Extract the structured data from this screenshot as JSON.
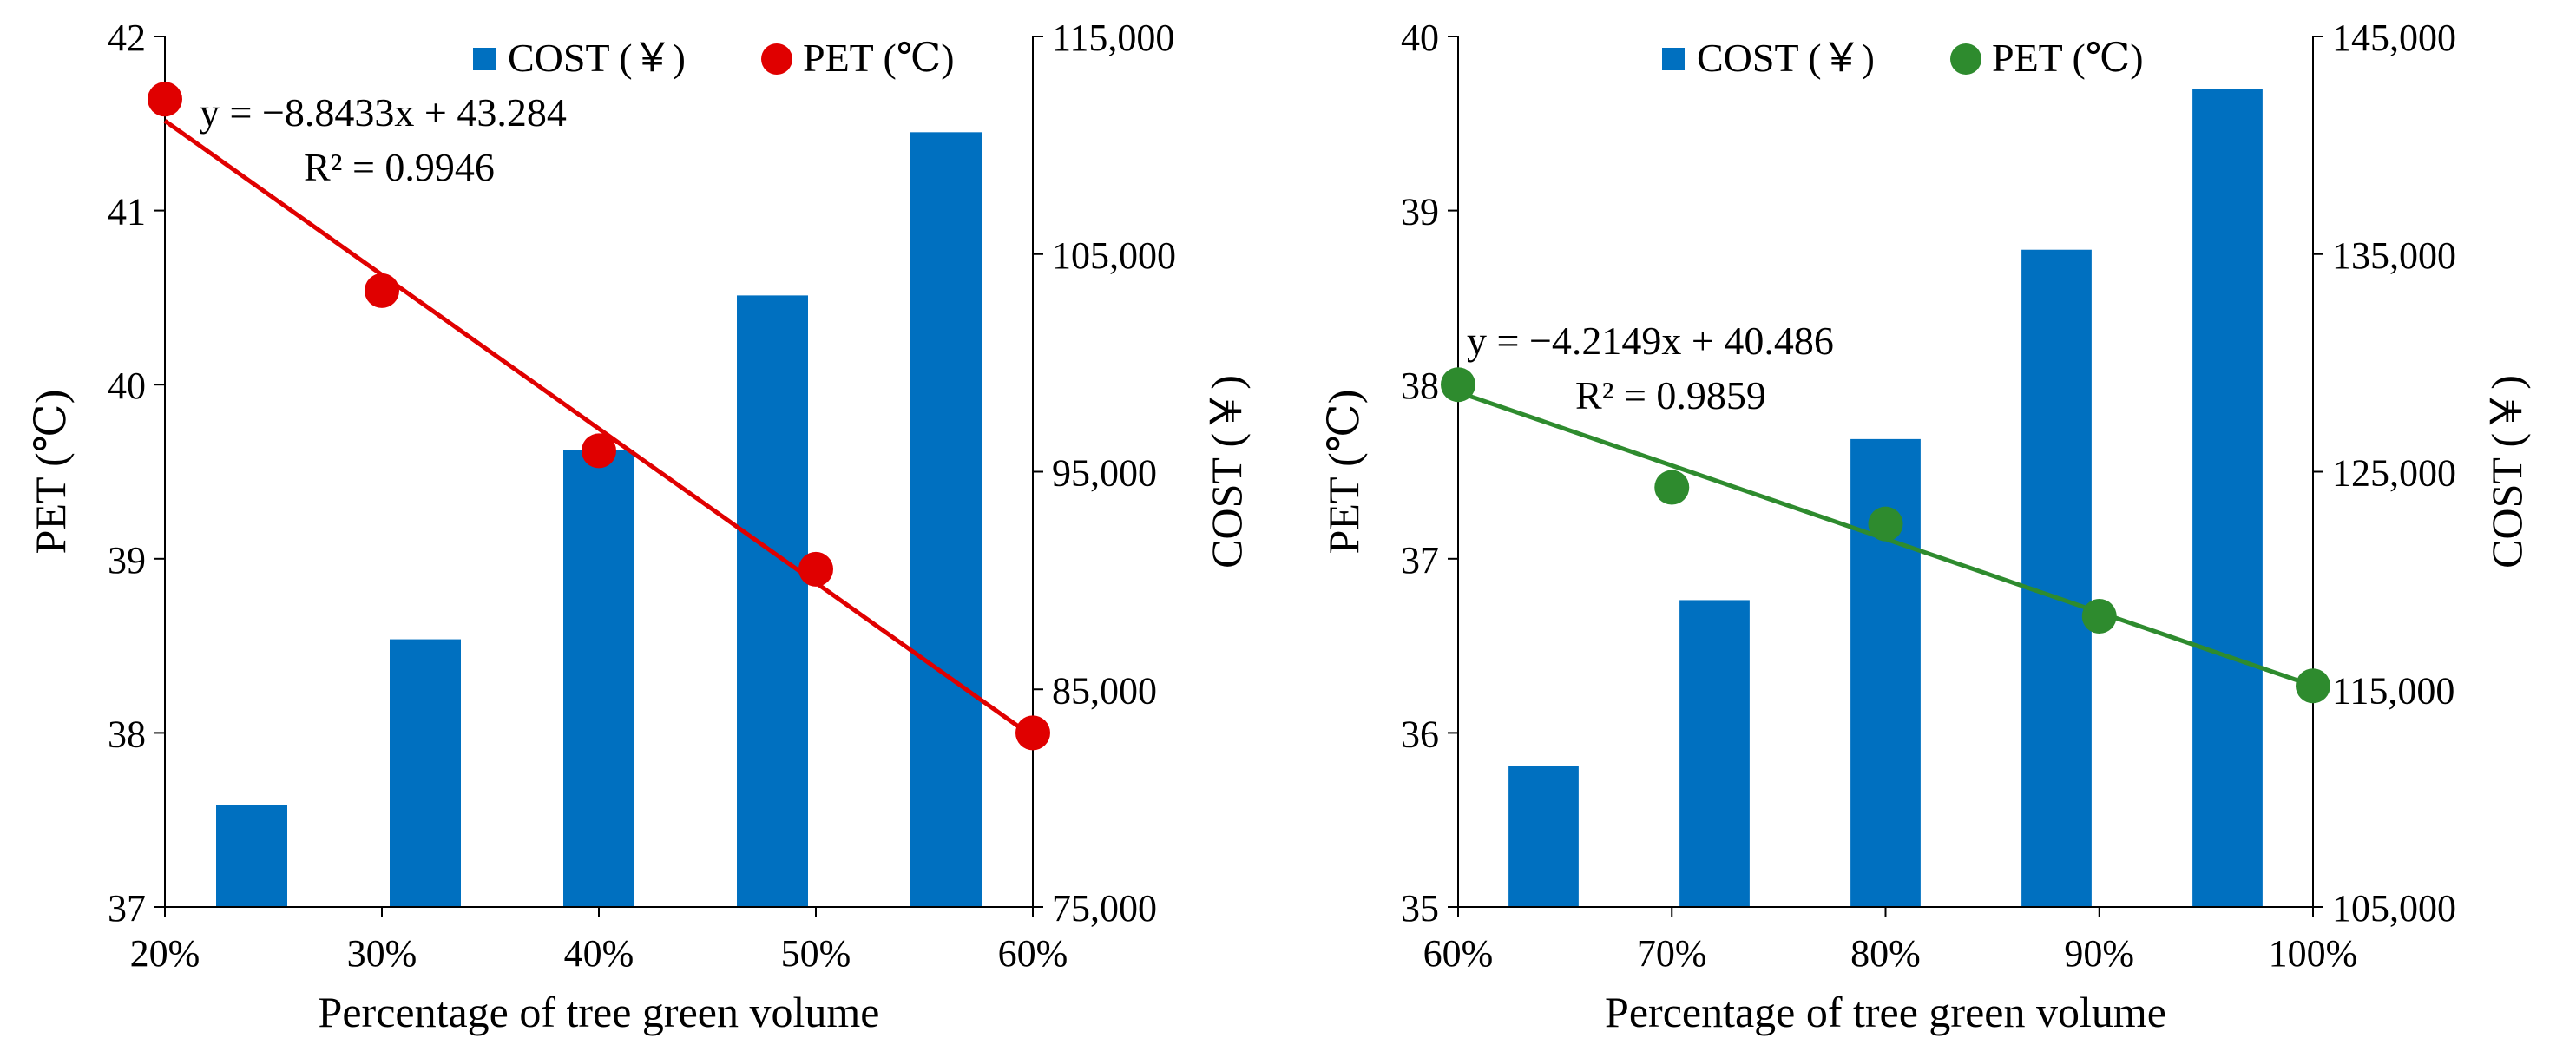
{
  "colors": {
    "bar": "#0070C0",
    "pet_left": "#E00000",
    "pet_right": "#2E8B2E",
    "axis": "#000000"
  },
  "chart_data": [
    {
      "type": "bar+scatter",
      "xlabel": "Percentage of tree green volume",
      "ylabel_left": "PET (℃)",
      "ylabel_right": "COST (￥)",
      "x_ticks": [
        "20%",
        "30%",
        "40%",
        "50%",
        "60%"
      ],
      "x_range": [
        20,
        60
      ],
      "ylim_left": [
        37,
        42
      ],
      "y_ticks_left": [
        "37",
        "38",
        "39",
        "40",
        "41",
        "42"
      ],
      "ylim_right": [
        75000,
        115000
      ],
      "y_ticks_right": [
        "75,000",
        "85,000",
        "95,000",
        "105,000",
        "115,000"
      ],
      "legend": [
        "COST (￥)",
        "PET (℃)"
      ],
      "bars": {
        "name": "COST (￥)",
        "x": [
          24,
          32,
          40,
          48,
          56
        ],
        "values": [
          79700,
          87300,
          96000,
          103100,
          110600
        ]
      },
      "points": {
        "name": "PET (℃)",
        "x": [
          20,
          30,
          40,
          50,
          60
        ],
        "values": [
          41.64,
          40.54,
          39.62,
          38.94,
          38.0
        ]
      },
      "trendline": {
        "slope": -8.8433,
        "intercept": 43.284,
        "x_from": 20,
        "x_to": 60
      },
      "equation": "y = −8.8433x + 43.284",
      "r2": "R² = 0.9946"
    },
    {
      "type": "bar+scatter",
      "xlabel": "Percentage of tree green volume",
      "ylabel_left": "PET (℃)",
      "ylabel_right": "COST (￥)",
      "x_ticks": [
        "60%",
        "70%",
        "80%",
        "90%",
        "100%"
      ],
      "x_range": [
        60,
        100
      ],
      "ylim_left": [
        35,
        40
      ],
      "y_ticks_left": [
        "35",
        "36",
        "37",
        "38",
        "39",
        "40"
      ],
      "ylim_right": [
        105000,
        145000
      ],
      "y_ticks_right": [
        "105,000",
        "115,000",
        "125,000",
        "135,000",
        "145,000"
      ],
      "legend": [
        "COST (￥)",
        "PET (℃)"
      ],
      "bars": {
        "name": "COST (￥)",
        "x": [
          64,
          72,
          80,
          88,
          96
        ],
        "values": [
          111500,
          119100,
          126500,
          135200,
          142600
        ]
      },
      "points": {
        "name": "PET (℃)",
        "x": [
          60,
          70,
          80,
          90,
          100
        ],
        "values": [
          38.0,
          37.41,
          37.2,
          36.67,
          36.27
        ]
      },
      "trendline": {
        "slope": -4.2149,
        "intercept": 40.486,
        "x_from": 60,
        "x_to": 100
      },
      "equation": "y = −4.2149x + 40.486",
      "r2": "R² = 0.9859"
    }
  ]
}
